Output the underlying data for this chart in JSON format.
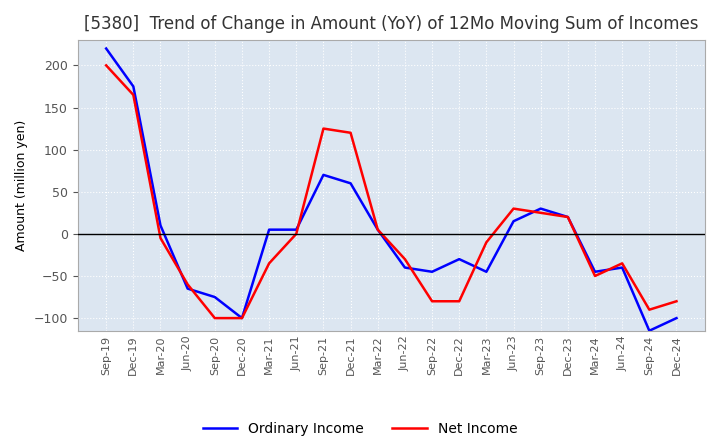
{
  "title": "[5380]  Trend of Change in Amount (YoY) of 12Mo Moving Sum of Incomes",
  "ylabel": "Amount (million yen)",
  "x_labels": [
    "Sep-19",
    "Dec-19",
    "Mar-20",
    "Jun-20",
    "Sep-20",
    "Dec-20",
    "Mar-21",
    "Jun-21",
    "Sep-21",
    "Dec-21",
    "Mar-22",
    "Jun-22",
    "Sep-22",
    "Dec-22",
    "Mar-23",
    "Jun-23",
    "Sep-23",
    "Dec-23",
    "Mar-24",
    "Jun-24",
    "Sep-24",
    "Dec-24"
  ],
  "ordinary_income": [
    220,
    175,
    10,
    -65,
    -75,
    -100,
    5,
    5,
    70,
    60,
    5,
    -40,
    -45,
    -30,
    -45,
    15,
    30,
    20,
    -45,
    -40,
    -115,
    -100
  ],
  "net_income": [
    200,
    165,
    -5,
    -60,
    -100,
    -100,
    -35,
    0,
    125,
    120,
    5,
    -30,
    -80,
    -80,
    -10,
    30,
    25,
    20,
    -50,
    -35,
    -90,
    -80
  ],
  "ordinary_income_color": "#0000ff",
  "net_income_color": "#ff0000",
  "ylim": [
    -115,
    230
  ],
  "yticks": [
    -100,
    -50,
    0,
    50,
    100,
    150,
    200
  ],
  "plot_bg_color": "#dce6f1",
  "fig_bg_color": "#ffffff",
  "grid_color": "#ffffff",
  "grid_linestyle": "dotted",
  "title_fontsize": 12,
  "axis_fontsize": 9,
  "legend_labels": [
    "Ordinary Income",
    "Net Income"
  ]
}
